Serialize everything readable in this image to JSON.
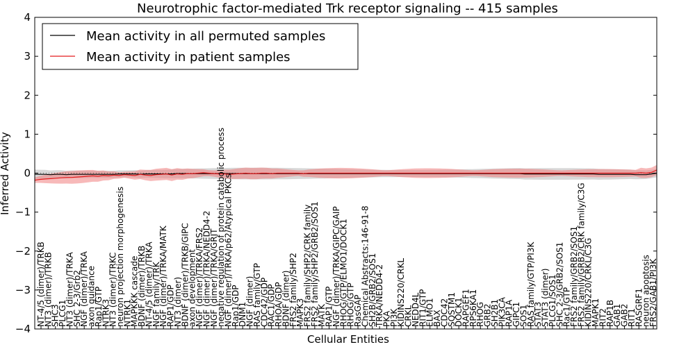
{
  "chart_data": {
    "type": "line",
    "title": "Neurotrophic factor-mediated Trk receptor signaling -- 415 samples",
    "xlabel": "Cellular Entities",
    "ylabel": "Inferred Activity",
    "ylim": [
      -4,
      4
    ],
    "yticks": [
      -4,
      -3,
      -2,
      -1,
      0,
      1,
      2,
      3,
      4
    ],
    "grid": false,
    "legend_position": "top-left",
    "colors": {
      "permuted": "#000000",
      "patient": "#e41a1c",
      "patient_band": "#f08080",
      "permuted_band": "#c8c8c8"
    },
    "series": [
      {
        "name": "Mean activity in all permuted samples",
        "values": [
          -0.03,
          -0.03,
          -0.03,
          -0.04,
          -0.03,
          -0.03,
          -0.04,
          -0.03,
          -0.03,
          -0.03,
          -0.03,
          -0.03,
          -0.03,
          -0.03,
          -0.03,
          -0.03,
          -0.02,
          -0.02,
          -0.02,
          -0.02,
          -0.03,
          -0.02,
          -0.02,
          -0.02,
          -0.02,
          -0.02,
          -0.02,
          -0.01,
          -0.01,
          -0.01,
          -0.01,
          -0.01,
          -0.01,
          -0.01,
          -0.01,
          -0.01,
          -0.01,
          -0.01,
          -0.01,
          -0.01,
          -0.01,
          -0.01,
          -0.01,
          -0.01,
          -0.01,
          -0.01,
          -0.01,
          -0.01,
          -0.01,
          -0.01,
          -0.01,
          -0.01,
          -0.01,
          -0.01,
          -0.01,
          -0.01,
          -0.01,
          -0.01,
          -0.01,
          -0.01,
          -0.01,
          -0.01,
          -0.01,
          -0.01,
          -0.01,
          -0.01,
          -0.01,
          -0.01,
          -0.01,
          -0.01,
          -0.01,
          -0.01,
          -0.01,
          -0.01,
          -0.01,
          -0.01,
          -0.01,
          -0.01,
          -0.01,
          -0.01,
          -0.01,
          -0.01,
          -0.01,
          -0.01,
          -0.01,
          -0.01,
          -0.01,
          -0.01,
          -0.01,
          -0.01,
          -0.01,
          -0.01,
          -0.01,
          -0.02,
          -0.02,
          -0.02,
          -0.02,
          -0.02,
          -0.02,
          -0.02,
          -0.02,
          -0.02,
          -0.02,
          -0.02,
          -0.02,
          -0.02,
          -0.02,
          -0.03,
          -0.03,
          -0.03,
          -0.03,
          -0.03,
          -0.03,
          -0.03,
          -0.04,
          -0.04,
          -0.04,
          -0.02,
          0.0
        ]
      },
      {
        "name": "Mean activity in patient samples",
        "values": [
          -0.18,
          -0.16,
          -0.15,
          -0.14,
          -0.13,
          -0.12,
          -0.11,
          -0.11,
          -0.1,
          -0.09,
          -0.08,
          -0.07,
          -0.08,
          -0.06,
          -0.07,
          -0.05,
          -0.06,
          -0.04,
          -0.05,
          -0.06,
          -0.03,
          -0.05,
          -0.06,
          -0.04,
          -0.03,
          -0.02,
          -0.05,
          -0.02,
          -0.03,
          -0.01,
          -0.01,
          0.0,
          0.01,
          0.0,
          -0.01,
          -0.02,
          -0.02,
          -0.03,
          -0.02,
          -0.01,
          0.0,
          -0.01,
          -0.01,
          0.0,
          0.0,
          -0.01,
          0.0,
          0.0,
          0.0,
          0.0,
          0.0,
          -0.01,
          0.0,
          0.0,
          0.0,
          0.0,
          0.0,
          0.0,
          0.0,
          0.0,
          0.0,
          0.0,
          0.0,
          0.0,
          0.0,
          0.0,
          0.0,
          0.0,
          0.0,
          0.0,
          0.0,
          0.0,
          0.0,
          0.0,
          0.0,
          0.0,
          0.0,
          0.0,
          0.0,
          0.0,
          0.0,
          0.0,
          0.0,
          0.0,
          0.0,
          0.0,
          0.0,
          0.0,
          0.0,
          0.0,
          0.0,
          0.0,
          0.0,
          0.0,
          0.0,
          0.0,
          0.0,
          0.0,
          0.0,
          0.0,
          0.0,
          0.0,
          0.0,
          0.0,
          0.0,
          0.0,
          0.0,
          0.0,
          0.0,
          0.0,
          0.0,
          0.0,
          0.0,
          0.0,
          0.0,
          0.01,
          0.0,
          0.02,
          0.08
        ]
      }
    ],
    "entities": [
      "NT-4/5 (dimer)/TRKB",
      "NT3 (dimer)/TRKB",
      "SHC3",
      "PLCG1",
      "NT3 (dimer)/TRKA",
      "SHC 2-3/Grb2",
      "NGF (dimer)/TRKA",
      "axon guidance",
      "Rap1/GTP",
      "NTRK3",
      "NT3 (dimer)/TRKC",
      "neuron projection morphogenesis",
      "NTRK1",
      "MAPKKK cascade",
      "BDNF (dimer)/TRKB",
      "NT-4/5 (dimer)/TRKA",
      "NGF family/TRK",
      "NGF (dimer)/TRKA/MATK",
      "RAP1/GDP",
      "NT3 (dimer)",
      "BDNF (dimer)/TRKB/GIPC",
      "axon development",
      "NGF (dimer)/TRKA/FRS2",
      "NGF (dimer)/TRKA/NEDD4-2",
      "NGF (dimer)/TRKA/GRIT",
      "negative regulation of protein catabolic process",
      "NGF (dimer)/TRKA/p62/Atypical PKCs",
      "Rap1/GDP",
      "DNM1",
      "NGF (dimer)",
      "RAS family/GTP",
      "CDC42/GDP",
      "RAC1/GDP",
      "RHOA/GDP",
      "BDNF (dimer)",
      "FRS2 family/SHP2",
      "MAPK3",
      "FRS2 family/SHP2/CRK family",
      "FRS2 family/SHP2/GRB2/SOS1",
      "MATK",
      "RAP1/GTP",
      "NGF (dimer)/TRKA/GIPC/GAIP",
      "RHOG/GTP/ELMO1/DOCK1",
      "RHOG/GTP",
      "RasGAP",
      "Chemical Abstracts:146-91-8",
      "SH2B/GRB2/SOS1",
      "TRKA/NEDD4-2",
      "PKA",
      "PI3K",
      "KIDINS220/CRKL",
      "CRKL",
      "NEDD4L",
      "RIT1/GTP",
      "ELMO1",
      "BAX",
      "CDC42",
      "SQSTM1",
      "DOCK1",
      "RAPGEF1",
      "RPS6KA1",
      "RHOG",
      "GRB2",
      "SH2B1",
      "PIK3CA",
      "RAP1A",
      "GIPC1",
      "SOS1",
      "RAS family/GTP/PI3K",
      "STAT3",
      "STAT3 (dimer)",
      "PLCG1/SOS1",
      "SHC 2-3/GRB2/SOS1",
      "Rac1/GTP",
      "FRS2 family/GRB2/SOS1",
      "FRS2 family/GRB2/CRK family/C3G",
      "KIDINS220/CRKL/C3G",
      "MAPK1",
      "RIT2",
      "RAP1B",
      "GAB1",
      "GAB2",
      "RIT1",
      "RASGRF1",
      "neuron apoptosis",
      "FRS2/GAB1/PI3K"
    ]
  }
}
